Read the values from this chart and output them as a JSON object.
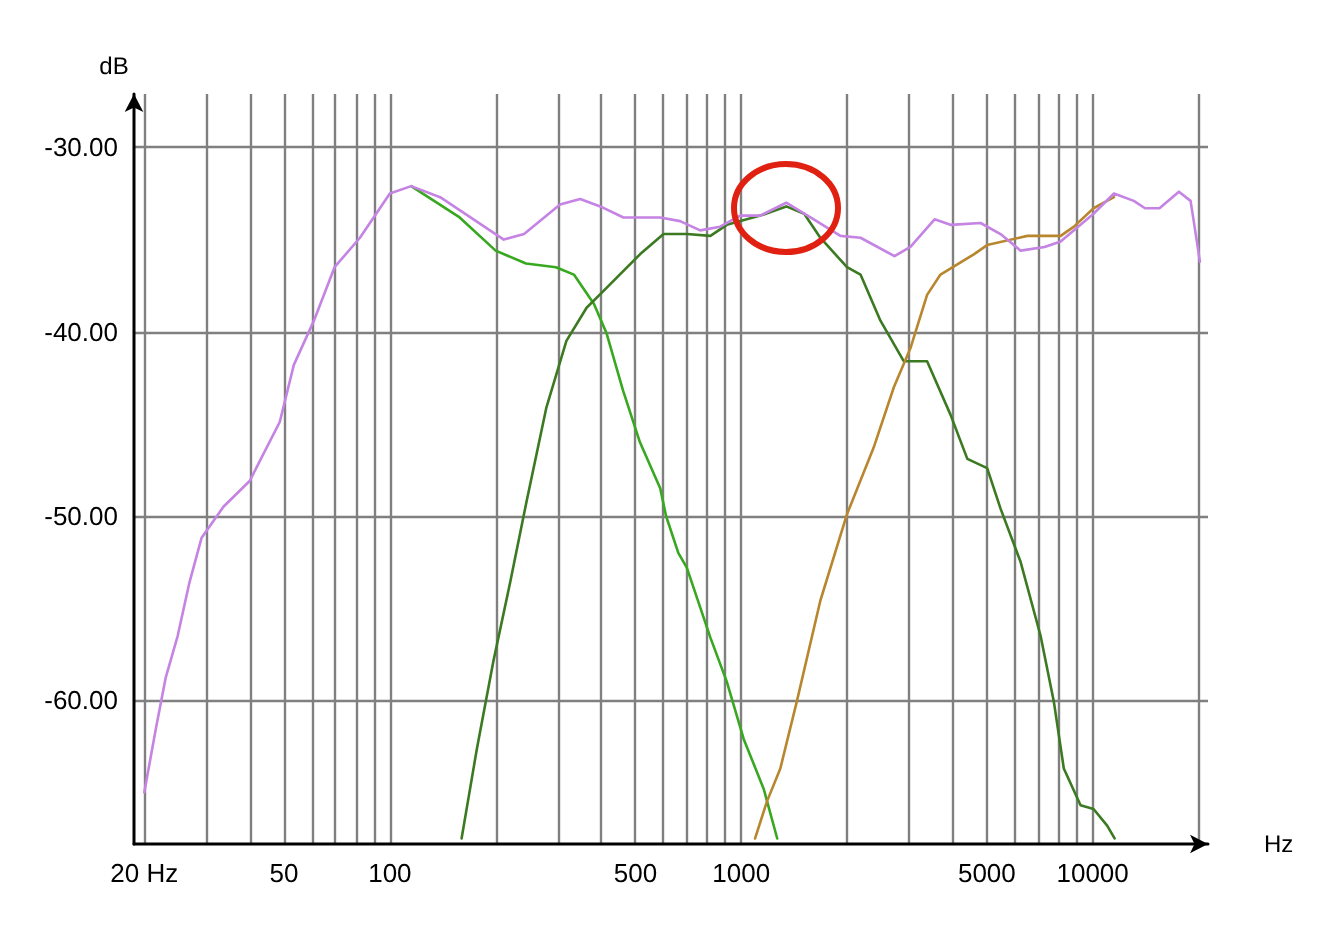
{
  "chart_data": {
    "type": "line",
    "xlabel": "Hz",
    "ylabel": "dB",
    "log": "x",
    "grid": true,
    "marker": "none",
    "line_style": "solid",
    "xlim": [
      18.7,
      21300
    ],
    "ylim": [
      -67.8,
      -27.1
    ],
    "xticks": [
      {
        "value": 20,
        "label": "20 Hz"
      },
      {
        "value": 30,
        "label": null
      },
      {
        "value": 40,
        "label": null
      },
      50,
      {
        "value": 60,
        "label": null
      },
      {
        "value": 70,
        "label": null
      },
      {
        "value": 80,
        "label": null
      },
      {
        "value": 90,
        "label": null
      },
      100,
      {
        "value": 200,
        "label": null
      },
      {
        "value": 300,
        "label": null
      },
      {
        "value": 400,
        "label": null
      },
      500,
      {
        "value": 600,
        "label": null
      },
      {
        "value": 700,
        "label": null
      },
      {
        "value": 800,
        "label": null
      },
      {
        "value": 900,
        "label": null
      },
      1000,
      {
        "value": 2000,
        "label": null
      },
      {
        "value": 3000,
        "label": null
      },
      {
        "value": 4000,
        "label": null
      },
      5000,
      {
        "value": 6000,
        "label": null
      },
      {
        "value": 7000,
        "label": null
      },
      {
        "value": 8000,
        "label": null
      },
      {
        "value": 9000,
        "label": null
      },
      10000,
      {
        "value": 20000,
        "label": null
      }
    ],
    "yticks": [
      {
        "value": -60,
        "label": "-60.00"
      },
      {
        "value": -50,
        "label": "-50.00"
      },
      {
        "value": -40,
        "label": "-40.00"
      },
      {
        "value": -30,
        "label": "-30.00"
      }
    ],
    "series": [
      {
        "color": "#38a820",
        "x": [
          115,
          158,
          200,
          244,
          297,
          334,
          381,
          414,
          461,
          515,
          588,
          611,
          662,
          700,
          817,
          910,
          1016,
          1158,
          1266
        ],
        "values": [
          -32.1,
          -33.8,
          -35.6,
          -36.3,
          -36.5,
          -36.9,
          -38.5,
          -40.1,
          -43.2,
          -46.0,
          -48.5,
          -50.0,
          -52.0,
          -52.8,
          -56.6,
          -59.0,
          -62.1,
          -64.8,
          -67.5
        ]
      },
      {
        "color": "#3c7a22",
        "x": [
          160,
          177,
          197,
          220,
          245,
          279,
          318,
          363,
          405,
          515,
          601,
          700,
          817,
          910,
          1133,
          1343,
          1511,
          1679,
          2000,
          2185,
          2490,
          2900,
          3380,
          3940,
          4400,
          5010,
          5470,
          6240,
          7110,
          7760,
          8280,
          9240,
          10060,
          11000,
          11550
        ],
        "values": [
          -67.5,
          -62.6,
          -57.9,
          -53.6,
          -49.2,
          -44.1,
          -40.5,
          -38.7,
          -37.8,
          -35.8,
          -34.7,
          -34.7,
          -34.8,
          -34.2,
          -33.7,
          -33.2,
          -33.6,
          -34.9,
          -36.5,
          -36.9,
          -39.4,
          -41.6,
          -41.6,
          -44.5,
          -46.9,
          -47.4,
          -49.6,
          -52.5,
          -56.5,
          -60.1,
          -63.7,
          -65.7,
          -65.9,
          -66.8,
          -67.5
        ]
      },
      {
        "color": "#b8862e",
        "x": [
          1095,
          1183,
          1292,
          1438,
          1679,
          2000,
          2380,
          2720,
          3030,
          3380,
          3690,
          4590,
          5010,
          6520,
          8110,
          8850,
          10060,
          11500
        ],
        "values": [
          -67.5,
          -65.5,
          -63.7,
          -60.1,
          -54.6,
          -49.9,
          -46.3,
          -43.0,
          -40.9,
          -38.0,
          -36.9,
          -35.8,
          -35.3,
          -34.8,
          -34.8,
          -34.3,
          -33.3,
          -32.7
        ]
      },
      {
        "color": "#c583e3",
        "x": [
          20,
          21.6,
          23,
          24.9,
          26.9,
          29.1,
          33.6,
          39.9,
          48.6,
          53.3,
          60.8,
          69.6,
          82.2,
          100,
          115,
          139,
          176,
          211,
          241,
          305,
          348,
          397,
          462,
          588,
          670,
          764,
          871,
          993,
          1133,
          1343,
          1574,
          1916,
          2185,
          2730,
          3030,
          3550,
          3940,
          4800,
          5470,
          6240,
          7300,
          8110,
          10060,
          11500,
          13100,
          14100,
          15500,
          17600,
          19000,
          19400,
          20200
        ],
        "values": [
          -65.0,
          -61.5,
          -58.8,
          -56.5,
          -53.6,
          -51.2,
          -49.5,
          -48.1,
          -44.9,
          -41.8,
          -39.4,
          -36.5,
          -34.9,
          -32.5,
          -32.1,
          -32.7,
          -34.0,
          -35.0,
          -34.7,
          -33.1,
          -32.8,
          -33.2,
          -33.8,
          -33.8,
          -34.0,
          -34.5,
          -34.3,
          -33.7,
          -33.7,
          -33.0,
          -33.8,
          -34.8,
          -34.9,
          -35.9,
          -35.4,
          -33.9,
          -34.2,
          -34.1,
          -34.7,
          -35.6,
          -35.4,
          -35.1,
          -33.6,
          -32.5,
          -32.9,
          -33.3,
          -33.3,
          -32.4,
          -32.9,
          -34.0,
          -36.2
        ]
      }
    ]
  }
}
